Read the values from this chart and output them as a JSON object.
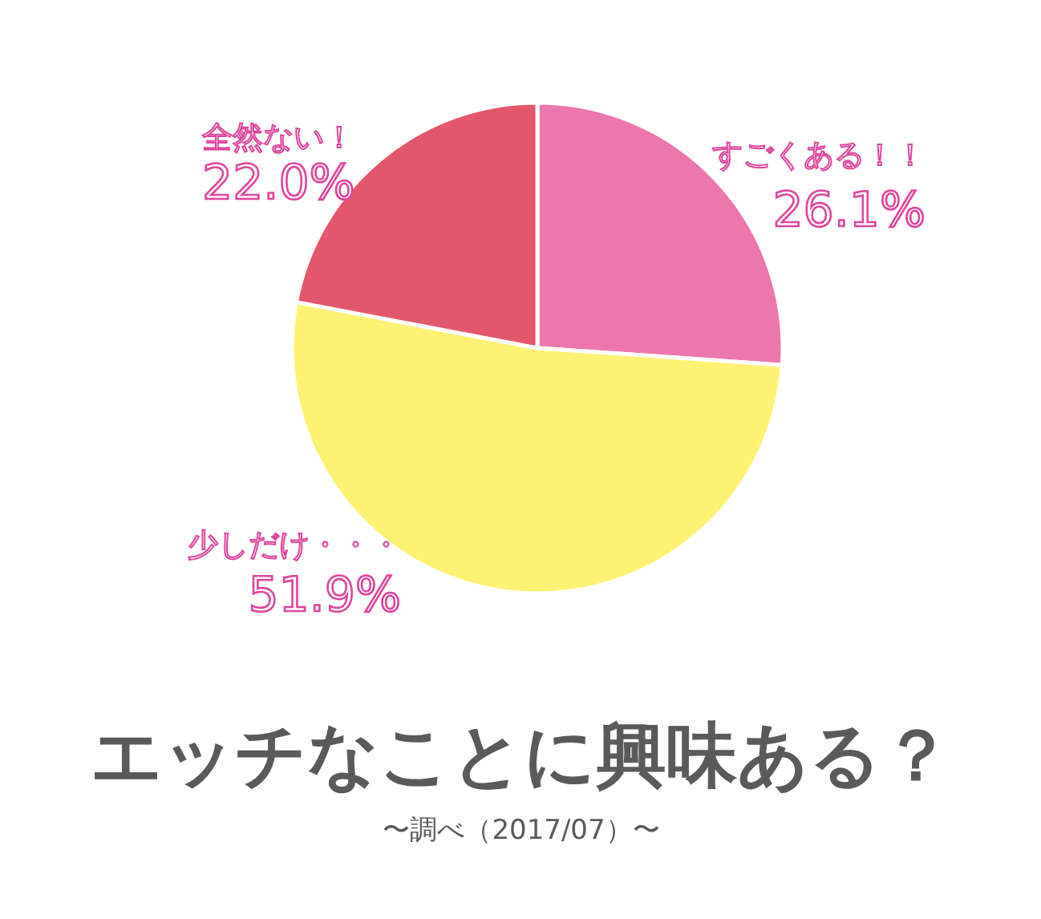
{
  "chart_data": {
    "type": "pie",
    "title": "エッチなことに興味ある？",
    "categories": [
      "すごくある！！",
      "少しだけ・・・",
      "全然ない！"
    ],
    "values": [
      26.1,
      51.9,
      22.0
    ],
    "colors": [
      "#eb77ac",
      "#fdf274",
      "#e2576b"
    ],
    "value_labels": [
      "26.1%",
      "51.9%",
      "22.0%"
    ],
    "annotations": [
      "〜調べ（2017/07）〜"
    ]
  }
}
